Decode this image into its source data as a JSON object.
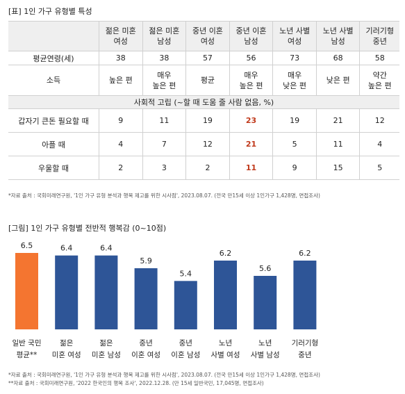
{
  "table_caption": "[표] 1인 가구 유형별 특성",
  "table": {
    "columns": [
      "젊은 미혼\n여성",
      "젊은 미혼\n남성",
      "중년 이혼\n여성",
      "중년 이혼\n남성",
      "노년 사별\n여성",
      "노년 사별\n남성",
      "기러기형\n중년"
    ],
    "age_label": "평균연령(세)",
    "age_values": [
      "38",
      "38",
      "57",
      "56",
      "73",
      "68",
      "58"
    ],
    "income_label": "소득",
    "income_values": [
      "높은 편",
      "매우\n높은 편",
      "평균",
      "매우\n높은 편",
      "매우\n낮은 편",
      "낮은 편",
      "약간\n높은 편"
    ],
    "section_label": "사회적 고립 (~할 때 도움 줄 사람 없음, %)",
    "isolation_rows": [
      {
        "label": "갑자기 큰돈 필요할 때",
        "values": [
          "9",
          "11",
          "19",
          "23",
          "19",
          "21",
          "12"
        ]
      },
      {
        "label": "아플 때",
        "values": [
          "4",
          "7",
          "12",
          "21",
          "5",
          "11",
          "4"
        ]
      },
      {
        "label": "우울할 때",
        "values": [
          "2",
          "3",
          "2",
          "11",
          "9",
          "15",
          "5"
        ]
      }
    ],
    "highlight_column": 3,
    "highlight_color": "#c0391b",
    "note": "*자료 출처 : 국회미래연구원, '1인 가구 유형 분석과 행복 제고를 위한 시사점', 2023.08.07. (전국 만15세 이상 1인가구 1,428명, 면접조사)"
  },
  "chart_caption": "[그림] 1인 가구 유형별 전반적 행복감 (0~10점)",
  "chart_data": {
    "type": "bar",
    "categories": [
      "일반 국민\n평균**",
      "젊은\n미혼 여성",
      "젊은\n미혼 남성",
      "중년\n이혼 여성",
      "중년\n이혼 남성",
      "노년\n사별 여성",
      "노년\n사별 남성",
      "기러기형\n중년"
    ],
    "values": [
      6.5,
      6.4,
      6.4,
      5.9,
      5.4,
      6.2,
      5.6,
      6.2
    ],
    "value_labels": [
      "6.5",
      "6.4",
      "6.4",
      "5.9",
      "5.4",
      "6.2",
      "5.6",
      "6.2"
    ],
    "title": "[그림] 1인 가구 유형별 전반적 행복감 (0~10점)",
    "ylim": [
      3.5,
      6.5
    ],
    "grid": false,
    "colors": {
      "highlight": "#f47530",
      "default": "#2e5597"
    },
    "highlight_index": 0
  },
  "chart_notes": [
    "*자료 출처 : 국회미래연구원, '1인 가구 유형 분석과 행복 제고를 위한 시사점', 2023.08.07. (전국 만15세 이상 1인가구 1,428명, 면접조사)",
    "**자료 출처 : 국회미래연구원, '2022 한국인의 행복 조사', 2022.12.28. (만 15세 일반국민, 17,045명, 면접조사)"
  ]
}
